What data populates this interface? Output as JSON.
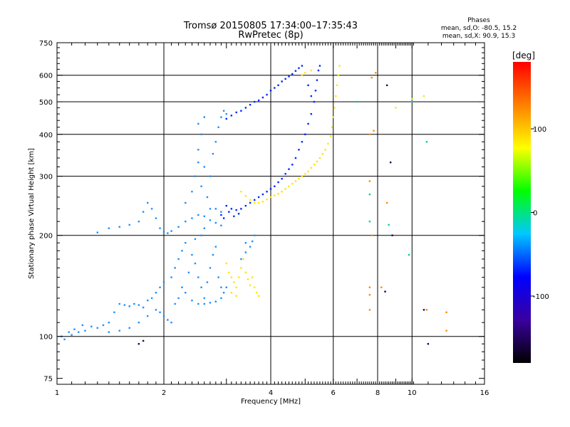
{
  "chart_data": {
    "type": "scatter",
    "title": "Tromsø 20150805 17:34:00–17:35:43",
    "subtitle": "RwPretec (8p)",
    "xlabel": "Frequency [MHz]",
    "ylabel": "Stationary phase Virtual Height [km]",
    "x_scale": "log",
    "y_scale": "log",
    "xlim": [
      1,
      16
    ],
    "ylim": [
      72,
      750
    ],
    "x_ticks": [
      "1",
      "2",
      "4",
      "6",
      "8",
      "10",
      "16"
    ],
    "y_ticks": [
      "75",
      "100",
      "200",
      "300",
      "400",
      "500",
      "600",
      "750"
    ],
    "x_grid": [
      2,
      4,
      6,
      8,
      10
    ],
    "y_grid": [
      100,
      200,
      300,
      400,
      500,
      600
    ],
    "grid": true,
    "phases_box": {
      "title": "Phases",
      "line1": "mean, sd,O:  -80.5, 15.2",
      "line2": "mean, sd,X:  90.9, 15.3"
    },
    "colorbar": {
      "label": "[deg]",
      "range": [
        -180,
        180
      ],
      "ticks": [
        "100",
        "0",
        "-100"
      ],
      "tick_values": [
        100,
        0,
        -100
      ],
      "colors": [
        "#000000",
        "#3a00a0",
        "#0000ff",
        "#00c8ff",
        "#00ff00",
        "#ffff00",
        "#ff8000",
        "#ff0000"
      ]
    },
    "series": [
      {
        "phase": -100,
        "color": "#1e90ff",
        "points": [
          [
            1.03,
            100
          ],
          [
            1.05,
            98
          ],
          [
            1.08,
            103
          ],
          [
            1.1,
            101
          ],
          [
            1.12,
            105
          ],
          [
            1.15,
            103
          ],
          [
            1.18,
            108
          ],
          [
            1.2,
            104
          ],
          [
            1.25,
            107
          ],
          [
            1.3,
            106
          ],
          [
            1.35,
            108
          ],
          [
            1.4,
            110
          ],
          [
            1.45,
            118
          ],
          [
            1.5,
            125
          ],
          [
            1.55,
            124
          ],
          [
            1.6,
            123
          ],
          [
            1.65,
            125
          ],
          [
            1.7,
            124
          ],
          [
            1.75,
            122
          ],
          [
            1.8,
            128
          ],
          [
            1.85,
            130
          ],
          [
            1.9,
            135
          ],
          [
            1.95,
            140
          ],
          [
            2.0,
            145
          ],
          [
            1.9,
            120
          ],
          [
            1.95,
            118
          ],
          [
            2.0,
            115
          ],
          [
            2.05,
            112
          ],
          [
            2.1,
            110
          ],
          [
            1.8,
            115
          ],
          [
            1.7,
            110
          ],
          [
            1.6,
            106
          ],
          [
            1.5,
            104
          ],
          [
            1.4,
            103
          ],
          [
            1.3,
            204
          ],
          [
            1.4,
            210
          ],
          [
            1.5,
            212
          ],
          [
            1.6,
            215
          ],
          [
            1.7,
            220
          ],
          [
            1.75,
            235
          ],
          [
            1.8,
            250
          ],
          [
            1.85,
            240
          ],
          [
            1.9,
            225
          ],
          [
            1.95,
            210
          ],
          [
            2.0,
            205
          ],
          [
            2.05,
            203
          ],
          [
            2.1,
            206
          ],
          [
            2.2,
            212
          ],
          [
            2.3,
            220
          ],
          [
            2.4,
            225
          ],
          [
            2.5,
            230
          ],
          [
            2.6,
            228
          ],
          [
            2.7,
            222
          ],
          [
            2.8,
            218
          ],
          [
            2.9,
            214
          ],
          [
            2.3,
            250
          ],
          [
            2.4,
            270
          ],
          [
            2.45,
            300
          ],
          [
            2.5,
            330
          ],
          [
            2.5,
            360
          ],
          [
            2.55,
            400
          ],
          [
            2.5,
            430
          ],
          [
            2.6,
            450
          ],
          [
            2.6,
            320
          ],
          [
            2.55,
            280
          ],
          [
            2.65,
            260
          ],
          [
            2.7,
            300
          ],
          [
            2.75,
            350
          ],
          [
            2.8,
            380
          ],
          [
            2.85,
            420
          ],
          [
            2.9,
            450
          ],
          [
            2.95,
            470
          ],
          [
            3.0,
            460
          ],
          [
            2.7,
            240
          ],
          [
            2.8,
            240
          ],
          [
            2.9,
            235
          ],
          [
            2.6,
            210
          ],
          [
            2.1,
            150
          ],
          [
            2.15,
            160
          ],
          [
            2.2,
            170
          ],
          [
            2.25,
            180
          ],
          [
            2.3,
            190
          ],
          [
            2.4,
            175
          ],
          [
            2.45,
            165
          ],
          [
            2.5,
            150
          ],
          [
            2.55,
            140
          ],
          [
            2.6,
            130
          ],
          [
            2.65,
            145
          ],
          [
            2.7,
            160
          ],
          [
            2.75,
            175
          ],
          [
            2.8,
            185
          ],
          [
            2.85,
            150
          ],
          [
            2.9,
            140
          ],
          [
            2.95,
            135
          ],
          [
            3.0,
            140
          ],
          [
            2.35,
            155
          ],
          [
            2.25,
            140
          ],
          [
            2.2,
            130
          ],
          [
            2.15,
            125
          ],
          [
            2.45,
            195
          ],
          [
            2.55,
            200
          ],
          [
            2.3,
            135
          ],
          [
            2.4,
            128
          ],
          [
            2.5,
            125
          ],
          [
            2.6,
            125
          ],
          [
            2.7,
            126
          ],
          [
            2.8,
            127
          ],
          [
            2.9,
            130
          ],
          [
            3.3,
            170
          ],
          [
            3.4,
            178
          ],
          [
            3.5,
            185
          ],
          [
            3.55,
            192
          ],
          [
            3.6,
            200
          ],
          [
            3.4,
            190
          ]
        ]
      },
      {
        "phase": -115,
        "color": "#0028ff",
        "points": [
          [
            3.0,
            445
          ],
          [
            3.1,
            455
          ],
          [
            3.2,
            465
          ],
          [
            3.3,
            470
          ],
          [
            3.4,
            480
          ],
          [
            3.5,
            490
          ],
          [
            3.6,
            500
          ],
          [
            3.7,
            505
          ],
          [
            3.8,
            515
          ],
          [
            3.9,
            525
          ],
          [
            4.0,
            540
          ],
          [
            4.1,
            550
          ],
          [
            4.2,
            560
          ],
          [
            4.3,
            575
          ],
          [
            4.4,
            585
          ],
          [
            4.5,
            595
          ],
          [
            4.6,
            605
          ],
          [
            4.7,
            618
          ],
          [
            4.8,
            630
          ],
          [
            4.9,
            640
          ],
          [
            3.0,
            245
          ],
          [
            3.1,
            240
          ],
          [
            3.2,
            238
          ],
          [
            3.3,
            240
          ],
          [
            3.4,
            245
          ],
          [
            3.5,
            250
          ],
          [
            3.6,
            255
          ],
          [
            3.7,
            260
          ],
          [
            3.8,
            265
          ],
          [
            3.9,
            270
          ],
          [
            4.0,
            275
          ],
          [
            4.1,
            280
          ],
          [
            4.2,
            288
          ],
          [
            4.3,
            295
          ],
          [
            4.4,
            305
          ],
          [
            4.5,
            315
          ],
          [
            4.6,
            325
          ],
          [
            4.7,
            340
          ],
          [
            4.8,
            360
          ],
          [
            4.9,
            380
          ],
          [
            5.0,
            400
          ],
          [
            5.1,
            430
          ],
          [
            5.2,
            460
          ],
          [
            5.3,
            500
          ],
          [
            5.35,
            540
          ],
          [
            5.4,
            580
          ],
          [
            5.45,
            620
          ],
          [
            2.9,
            230
          ],
          [
            2.95,
            225
          ],
          [
            3.05,
            235
          ],
          [
            3.15,
            228
          ],
          [
            3.25,
            232
          ],
          [
            5.5,
            640
          ],
          [
            5.1,
            560
          ],
          [
            5.2,
            520
          ]
        ]
      },
      {
        "phase": 110,
        "color": "#ffe600",
        "points": [
          [
            3.3,
            270
          ],
          [
            3.4,
            262
          ],
          [
            3.5,
            255
          ],
          [
            3.6,
            250
          ],
          [
            3.7,
            250
          ],
          [
            3.8,
            252
          ],
          [
            3.9,
            256
          ],
          [
            4.0,
            260
          ],
          [
            4.1,
            263
          ],
          [
            4.2,
            266
          ],
          [
            4.3,
            270
          ],
          [
            4.4,
            275
          ],
          [
            4.5,
            280
          ],
          [
            4.6,
            285
          ],
          [
            4.7,
            290
          ],
          [
            4.8,
            295
          ],
          [
            4.9,
            300
          ],
          [
            5.0,
            305
          ],
          [
            5.1,
            310
          ],
          [
            5.2,
            318
          ],
          [
            5.3,
            325
          ],
          [
            5.4,
            332
          ],
          [
            5.5,
            340
          ],
          [
            5.6,
            350
          ],
          [
            5.7,
            360
          ],
          [
            5.8,
            375
          ],
          [
            5.9,
            395
          ],
          [
            5.95,
            420
          ],
          [
            6.0,
            450
          ],
          [
            6.05,
            480
          ],
          [
            6.1,
            520
          ],
          [
            6.15,
            560
          ],
          [
            6.2,
            600
          ],
          [
            6.25,
            640
          ],
          [
            3.0,
            165
          ],
          [
            3.05,
            155
          ],
          [
            3.1,
            150
          ],
          [
            3.15,
            145
          ],
          [
            3.2,
            140
          ],
          [
            3.25,
            150
          ],
          [
            3.3,
            160
          ],
          [
            3.35,
            170
          ],
          [
            3.4,
            155
          ],
          [
            3.45,
            148
          ],
          [
            3.5,
            142
          ],
          [
            3.55,
            150
          ],
          [
            3.6,
            140
          ],
          [
            3.65,
            135
          ],
          [
            3.7,
            132
          ],
          [
            3.2,
            132
          ],
          [
            3.1,
            135
          ],
          [
            4.9,
            600
          ],
          [
            5.0,
            610
          ],
          [
            5.2,
            620
          ]
        ]
      },
      {
        "phase": 60,
        "color": "#c8ff00",
        "points": [
          [
            9.0,
            480
          ],
          [
            10.0,
            510
          ],
          [
            10.8,
            520
          ]
        ]
      },
      {
        "phase": 140,
        "color": "#ff8c00",
        "points": [
          [
            7.6,
            400
          ],
          [
            7.8,
            410
          ],
          [
            7.6,
            290
          ],
          [
            8.5,
            250
          ],
          [
            7.7,
            200
          ],
          [
            7.6,
            140
          ],
          [
            7.6,
            133
          ],
          [
            8.2,
            140
          ],
          [
            7.6,
            120
          ],
          [
            11.0,
            120
          ],
          [
            12.5,
            118
          ],
          [
            12.5,
            104
          ],
          [
            7.7,
            590
          ],
          [
            7.9,
            610
          ]
        ]
      },
      {
        "phase": 20,
        "color": "#00d0a0",
        "points": [
          [
            7.6,
            265
          ],
          [
            8.6,
            215
          ],
          [
            7.6,
            220
          ],
          [
            10.0,
            500
          ],
          [
            11.0,
            380
          ],
          [
            7.0,
            500
          ],
          [
            9.8,
            175
          ]
        ]
      },
      {
        "phase": -140,
        "color": "#200060",
        "points": [
          [
            8.5,
            560
          ],
          [
            8.7,
            330
          ],
          [
            8.8,
            200
          ],
          [
            8.4,
            136
          ],
          [
            11.1,
            95
          ],
          [
            10.8,
            120
          ],
          [
            1.7,
            95
          ],
          [
            1.75,
            97
          ]
        ]
      }
    ]
  }
}
